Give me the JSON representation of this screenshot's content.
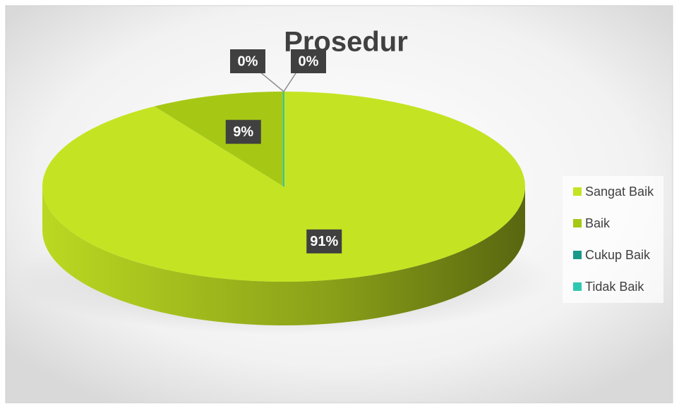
{
  "chart_data": {
    "type": "pie",
    "title": "Prosedur",
    "categories": [
      "Sangat Baik",
      "Baik",
      "Cukup Baik",
      "Tidak Baik"
    ],
    "values": [
      91,
      9,
      0,
      0
    ],
    "value_labels": [
      "91%",
      "9%",
      "0%",
      "0%"
    ],
    "colors": [
      "#c4e423",
      "#a6c815",
      "#17998a",
      "#2dc8b2"
    ],
    "legend": "right"
  }
}
